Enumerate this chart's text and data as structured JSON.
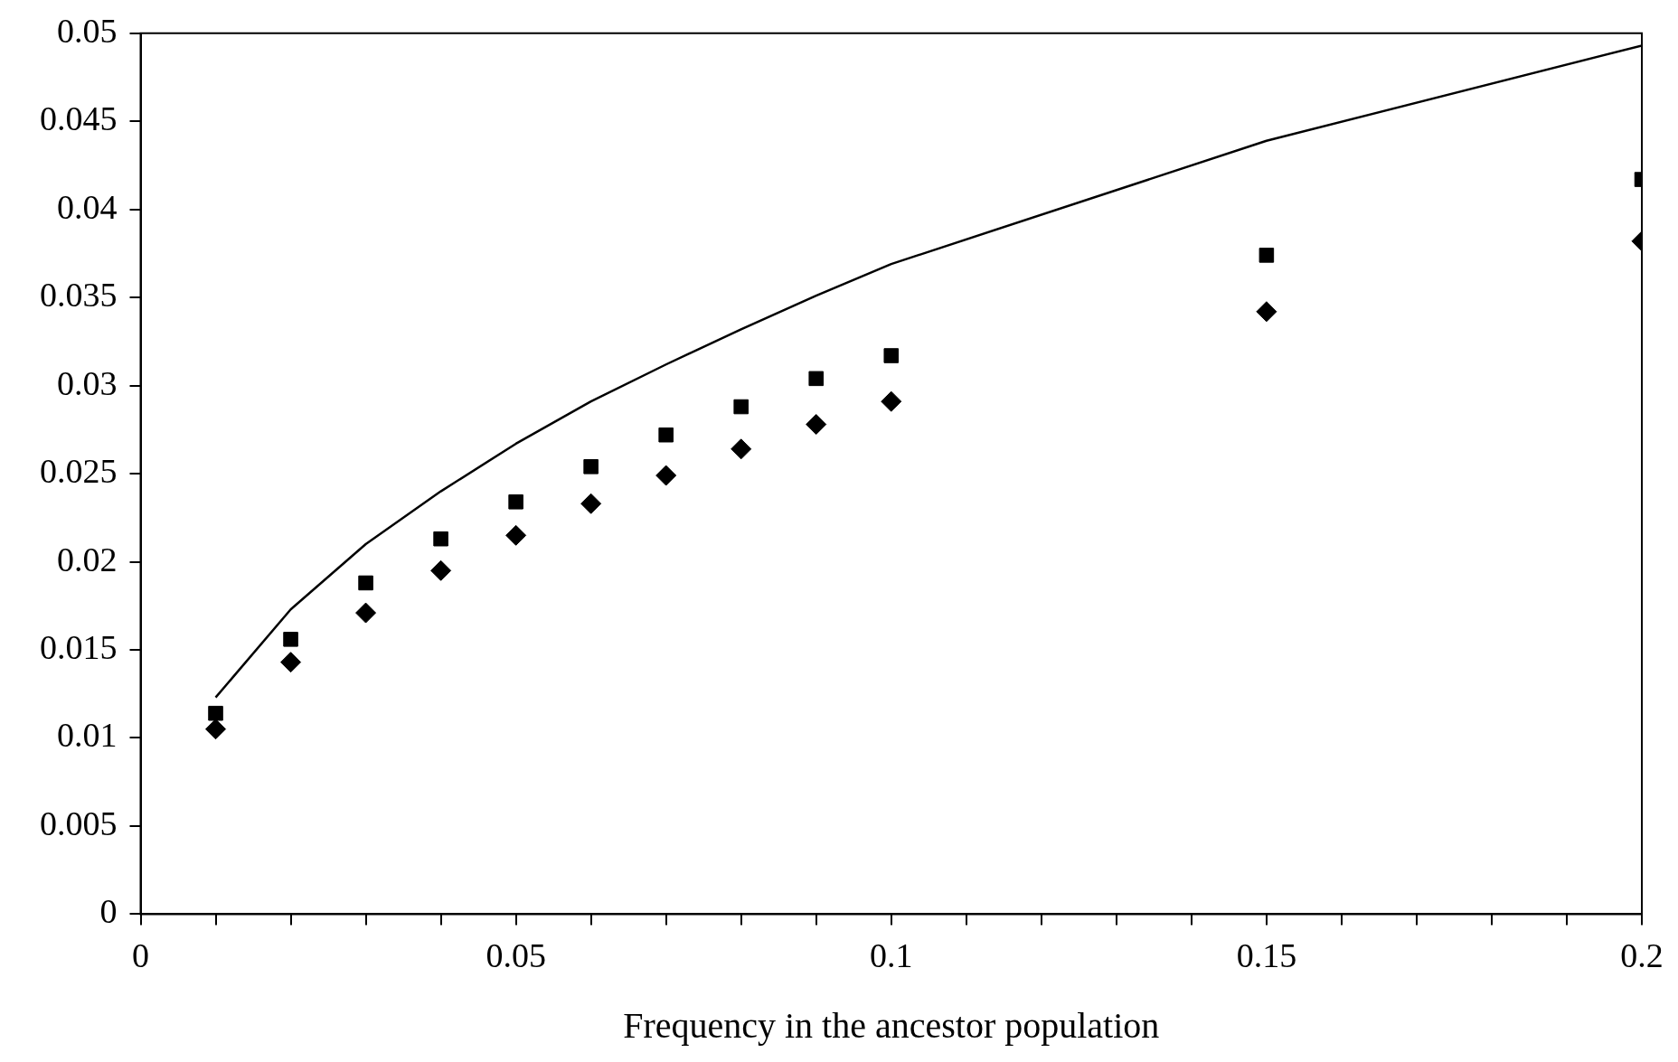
{
  "chart_data": {
    "type": "scatter",
    "xlabel": "Frequency in the ancestor population",
    "xlim": [
      0,
      0.2
    ],
    "ylim": [
      0,
      0.05
    ],
    "xticks": [
      0,
      {
        "value": 0.01,
        "label": null
      },
      {
        "value": 0.02,
        "label": null
      },
      {
        "value": 0.03,
        "label": null
      },
      {
        "value": 0.04,
        "label": null
      },
      0.05,
      {
        "value": 0.06,
        "label": null
      },
      {
        "value": 0.07,
        "label": null
      },
      {
        "value": 0.08,
        "label": null
      },
      {
        "value": 0.09,
        "label": null
      },
      0.1,
      {
        "value": 0.11,
        "label": null
      },
      {
        "value": 0.12,
        "label": null
      },
      {
        "value": 0.13,
        "label": null
      },
      {
        "value": 0.14,
        "label": null
      },
      0.15,
      {
        "value": 0.16,
        "label": null
      },
      {
        "value": 0.17,
        "label": null
      },
      {
        "value": 0.18,
        "label": null
      },
      {
        "value": 0.19,
        "label": null
      },
      0.2
    ],
    "yticks": [
      0,
      0.005,
      0.01,
      0.015,
      0.02,
      0.025,
      0.03,
      0.035,
      0.04,
      0.045,
      0.05
    ],
    "grid": false,
    "legend": false,
    "series": [
      {
        "type": "line",
        "color": "#000000",
        "marker": "none",
        "line_style": "solid",
        "x": [
          0.01,
          0.02,
          0.03,
          0.04,
          0.05,
          0.06,
          0.07,
          0.08,
          0.09,
          0.1,
          0.15,
          0.2
        ],
        "values": [
          0.0123,
          0.0173,
          0.021,
          0.024,
          0.0267,
          0.0291,
          0.0312,
          0.0332,
          0.0351,
          0.0369,
          0.0439,
          0.0493
        ]
      },
      {
        "type": "scatter",
        "color": "#000000",
        "marker": "square",
        "x": [
          0.01,
          0.02,
          0.03,
          0.04,
          0.05,
          0.06,
          0.07,
          0.08,
          0.09,
          0.1,
          0.15,
          0.2
        ],
        "values": [
          0.0114,
          0.0156,
          0.0188,
          0.0213,
          0.0234,
          0.0254,
          0.0272,
          0.0288,
          0.0304,
          0.0317,
          0.0374,
          0.0417
        ]
      },
      {
        "type": "scatter",
        "color": "#000000",
        "marker": "diamond",
        "x": [
          0.01,
          0.02,
          0.03,
          0.04,
          0.05,
          0.06,
          0.07,
          0.08,
          0.09,
          0.1,
          0.15,
          0.2
        ],
        "values": [
          0.0105,
          0.0143,
          0.0171,
          0.0195,
          0.0215,
          0.0233,
          0.0249,
          0.0264,
          0.0278,
          0.0291,
          0.0342,
          0.0382
        ]
      }
    ]
  }
}
